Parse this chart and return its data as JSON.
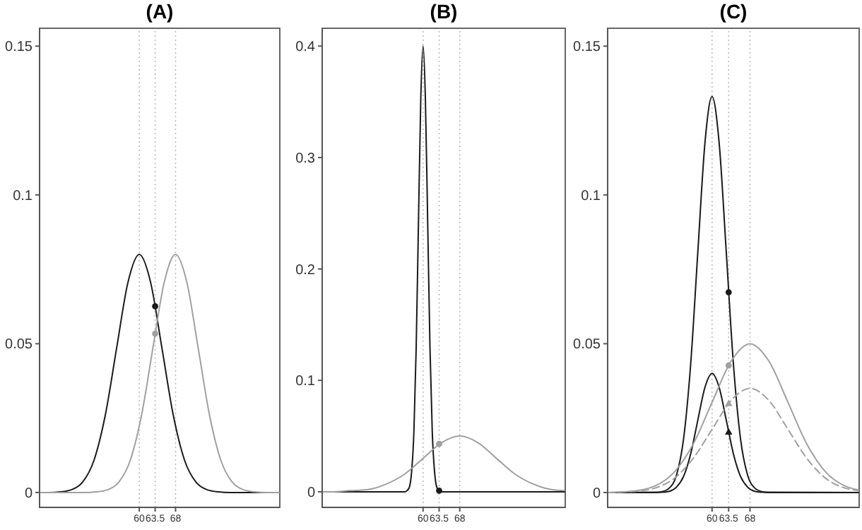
{
  "chart_data": [
    {
      "type": "line",
      "title": "(A)",
      "xlim": [
        38,
        91
      ],
      "xticks": [
        60,
        63.5,
        68
      ],
      "ylim": [
        -0.005,
        0.156
      ],
      "yticks": [
        0,
        0.05,
        0.1,
        0.15
      ],
      "grid": false,
      "ref_lines": [
        {
          "axis": "x",
          "value": 60,
          "line_style": "dotted",
          "color": "#bbbbbb"
        },
        {
          "axis": "x",
          "value": 63.5,
          "line_style": "dotted",
          "color": "#bbbbbb"
        },
        {
          "axis": "x",
          "value": 68,
          "line_style": "dotted",
          "color": "#bbbbbb"
        }
      ],
      "series": [
        {
          "color": "#1a1a1a",
          "x": [
            38,
            40,
            42.5,
            45,
            47.5,
            50,
            52.5,
            55,
            57.5,
            60,
            62.5,
            65,
            67.5,
            70,
            72.5,
            75,
            77.5,
            80,
            91
          ],
          "values": [
            0,
            0,
            0.0002,
            0.0009,
            0.0035,
            0.0108,
            0.026,
            0.0485,
            0.0706,
            0.08,
            0.0706,
            0.0485,
            0.026,
            0.0108,
            0.0035,
            0.0009,
            0.0002,
            0,
            0
          ]
        },
        {
          "color": "#a0a0a0",
          "x": [
            38,
            48,
            50.5,
            53,
            55.5,
            58,
            60.5,
            63,
            65.5,
            68,
            70.5,
            73,
            75.5,
            78,
            80.5,
            83,
            85.5,
            88,
            91
          ],
          "values": [
            0,
            0,
            0.0002,
            0.0009,
            0.0035,
            0.0108,
            0.026,
            0.0485,
            0.0706,
            0.08,
            0.0706,
            0.0485,
            0.026,
            0.0108,
            0.0035,
            0.0009,
            0.0002,
            0,
            0
          ]
        },
        {
          "type": "scatter",
          "color": "#1a1a1a",
          "marker": "circle",
          "x": [
            63.5
          ],
          "values": [
            0.0626
          ]
        },
        {
          "type": "scatter",
          "color": "#a0a0a0",
          "marker": "circle",
          "x": [
            63.5
          ],
          "values": [
            0.0534
          ]
        }
      ]
    },
    {
      "type": "line",
      "title": "(B)",
      "xlim": [
        38,
        91
      ],
      "xticks": [
        60,
        63.5,
        68
      ],
      "ylim": [
        -0.014,
        0.416
      ],
      "yticks": [
        0,
        0.1,
        0.2,
        0.3,
        0.4
      ],
      "grid": false,
      "ref_lines": [
        {
          "axis": "x",
          "value": 60,
          "line_style": "dotted",
          "color": "#bbbbbb"
        },
        {
          "axis": "x",
          "value": 63.5,
          "line_style": "dotted",
          "color": "#bbbbbb"
        },
        {
          "axis": "x",
          "value": 68,
          "line_style": "dotted",
          "color": "#bbbbbb"
        }
      ],
      "series": [
        {
          "color": "#1a1a1a",
          "x": [
            38,
            56,
            56.5,
            57,
            57.5,
            58,
            58.5,
            59,
            59.5,
            60,
            60.5,
            61,
            61.5,
            62,
            62.5,
            63,
            63.5,
            64,
            91
          ],
          "values": [
            0,
            0,
            0.001,
            0.004,
            0.018,
            0.054,
            0.13,
            0.243,
            0.353,
            0.4,
            0.353,
            0.243,
            0.13,
            0.054,
            0.018,
            0.004,
            0.001,
            0,
            0
          ]
        },
        {
          "color": "#a0a0a0",
          "x": [
            38,
            40,
            44,
            48,
            52,
            56,
            60,
            64,
            68,
            72,
            76,
            80,
            84,
            88,
            91
          ],
          "values": [
            0,
            0,
            0.001,
            0.002,
            0.007,
            0.016,
            0.03,
            0.044,
            0.05,
            0.044,
            0.03,
            0.016,
            0.007,
            0.002,
            0.001
          ]
        },
        {
          "type": "scatter",
          "color": "#a0a0a0",
          "marker": "circle",
          "x": [
            63.5
          ],
          "values": [
            0.043
          ]
        },
        {
          "type": "scatter",
          "color": "#1a1a1a",
          "marker": "circle",
          "x": [
            63.5
          ],
          "values": [
            0.001
          ]
        }
      ]
    },
    {
      "type": "line",
      "title": "(C)",
      "xlim": [
        38,
        91
      ],
      "xticks": [
        60,
        63.5,
        68
      ],
      "ylim": [
        -0.005,
        0.156
      ],
      "yticks": [
        0,
        0.05,
        0.1,
        0.15
      ],
      "grid": false,
      "ref_lines": [
        {
          "axis": "x",
          "value": 60,
          "line_style": "dotted",
          "color": "#bbbbbb"
        },
        {
          "axis": "x",
          "value": 63.5,
          "line_style": "dotted",
          "color": "#bbbbbb"
        },
        {
          "axis": "x",
          "value": 68,
          "line_style": "dotted",
          "color": "#bbbbbb"
        }
      ],
      "series": [
        {
          "color": "#1a1a1a",
          "x": [
            38,
            48,
            49.5,
            51,
            52.5,
            54,
            55.5,
            57,
            58.5,
            60,
            61.5,
            63,
            64.5,
            66,
            67.5,
            69,
            70.5,
            72,
            91
          ],
          "values": [
            0,
            0,
            0.0003,
            0.0015,
            0.0058,
            0.018,
            0.0432,
            0.0807,
            0.1174,
            0.133,
            0.1174,
            0.0807,
            0.0432,
            0.018,
            0.0058,
            0.0015,
            0.0003,
            0,
            0
          ]
        },
        {
          "color": "#1a1a1a",
          "x": [
            38,
            49.5,
            51,
            52.5,
            54,
            55.5,
            57,
            58.5,
            60,
            61.5,
            63,
            64.5,
            66,
            67.5,
            69,
            70.5,
            91
          ],
          "values": [
            0,
            0.0001,
            0.0004,
            0.0018,
            0.0054,
            0.013,
            0.0243,
            0.0353,
            0.04,
            0.0353,
            0.0243,
            0.013,
            0.0054,
            0.0018,
            0.0004,
            0.0001,
            0
          ]
        },
        {
          "color": "#a0a0a0",
          "x": [
            38,
            40,
            44,
            48,
            52,
            56,
            60,
            64,
            68,
            72,
            76,
            80,
            84,
            88,
            91
          ],
          "values": [
            0,
            0.0001,
            0.0006,
            0.0022,
            0.0068,
            0.0162,
            0.0303,
            0.0441,
            0.05,
            0.0441,
            0.0303,
            0.0162,
            0.0068,
            0.0022,
            0.0008
          ]
        },
        {
          "color": "#a0a0a0",
          "line_style": "dashed",
          "x": [
            38,
            40,
            44,
            48,
            52,
            56,
            60,
            64,
            68,
            72,
            76,
            80,
            84,
            88,
            91
          ],
          "values": [
            0,
            0.0001,
            0.0004,
            0.0015,
            0.0047,
            0.0114,
            0.0212,
            0.0309,
            0.035,
            0.0309,
            0.0212,
            0.0114,
            0.0047,
            0.0015,
            0.0006
          ]
        },
        {
          "type": "scatter",
          "color": "#1a1a1a",
          "marker": "circle",
          "x": [
            63.5
          ],
          "values": [
            0.0673
          ]
        },
        {
          "type": "scatter",
          "color": "#1a1a1a",
          "marker": "triangle",
          "x": [
            63.5
          ],
          "values": [
            0.0203
          ]
        },
        {
          "type": "scatter",
          "color": "#a0a0a0",
          "marker": "circle",
          "x": [
            63.5
          ],
          "values": [
            0.0427
          ]
        },
        {
          "type": "scatter",
          "color": "#a0a0a0",
          "marker": "triangle",
          "x": [
            63.5
          ],
          "values": [
            0.0299
          ]
        }
      ]
    }
  ]
}
